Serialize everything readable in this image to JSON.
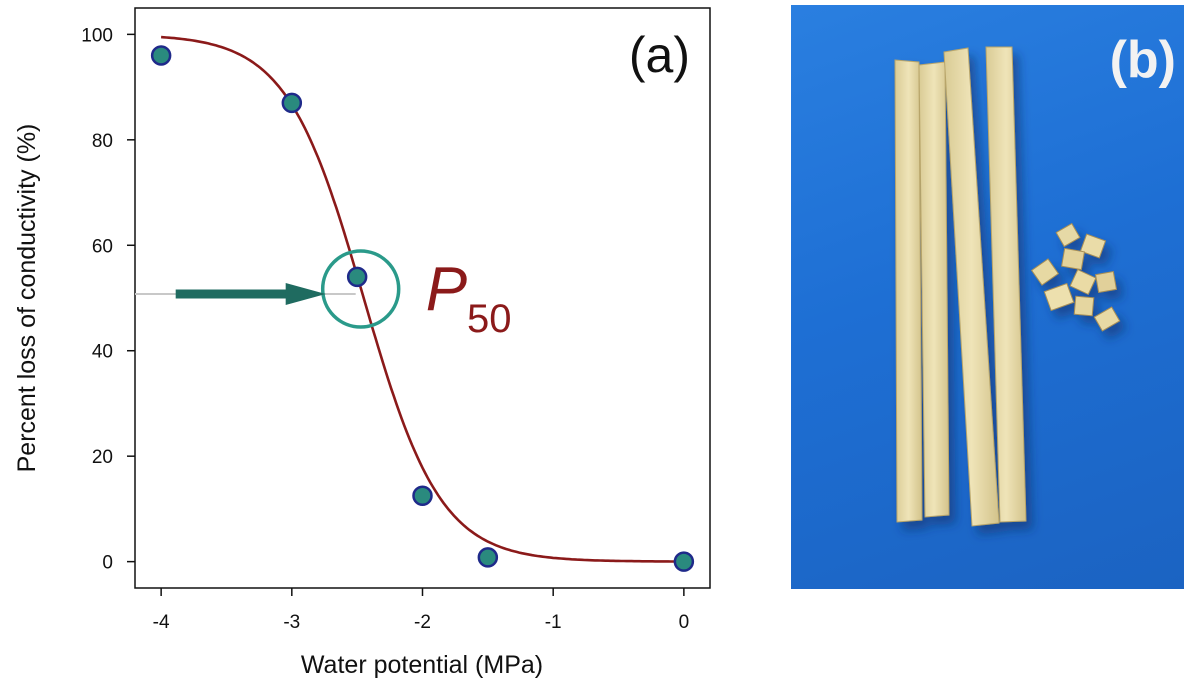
{
  "chart_data": {
    "type": "scatter",
    "panel_label": "(a)",
    "xlabel": "Water potential (MPa)",
    "ylabel": "Percent loss of conductivity (%)",
    "xlim": [
      -4.2,
      0.2
    ],
    "ylim": [
      -5,
      105
    ],
    "xticks": [
      -4,
      -3,
      -2,
      -1,
      0
    ],
    "xtick_labels": [
      "-4",
      "-3",
      "-2",
      "-1",
      "0"
    ],
    "yticks": [
      0,
      20,
      40,
      60,
      80,
      100
    ],
    "ytick_labels": [
      "0",
      "20",
      "40",
      "60",
      "80",
      "100"
    ],
    "points": [
      {
        "x": -4,
        "y": 96
      },
      {
        "x": -3,
        "y": 87
      },
      {
        "x": -2.5,
        "y": 54
      },
      {
        "x": -2,
        "y": 12.5
      },
      {
        "x": -1.5,
        "y": 0.8
      },
      {
        "x": 0,
        "y": 0
      }
    ],
    "fit_curve": {
      "x_start": -4,
      "x_end": 0,
      "midpoint": -2.45,
      "slope": 3.4,
      "max": 100
    },
    "annotation": {
      "label_main": "P",
      "label_sub": "50",
      "x": -2.45,
      "y": 50
    },
    "colors": {
      "marker_fill": "#2a8a7e",
      "marker_edge": "#1f2a8a",
      "curve": "#8b1a1a",
      "annotation": "#2a9a8a",
      "arrow": "#1f6b60",
      "p50_text": "#8b1a1a",
      "guide_line": "#c8c8c8"
    }
  },
  "photo_panel": {
    "label": "(b)",
    "colors": {
      "background": "#1e6fd4",
      "wood": "#e8dcac",
      "label": "#f2f2f2"
    }
  }
}
